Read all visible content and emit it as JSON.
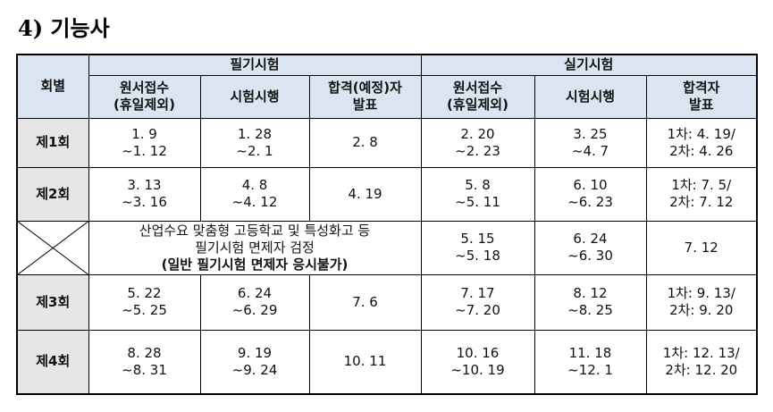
{
  "title": "4) 기능사",
  "table": {
    "header": {
      "round": "회별",
      "written": "필기시험",
      "practical": "실기시험"
    },
    "subheaders": [
      [
        "원서접수",
        "(휴일제외)"
      ],
      [
        "시험시행"
      ],
      [
        "합격(예정)자",
        "발표"
      ],
      [
        "원서접수",
        "(휴일제외)"
      ],
      [
        "시험시행"
      ],
      [
        "합격자",
        "발표"
      ]
    ],
    "rows": [
      {
        "label": "제1회",
        "cells": [
          [
            "1. 9",
            "~1. 12"
          ],
          [
            "1. 28",
            "~2. 1"
          ],
          [
            "2. 8"
          ],
          [
            "2. 20",
            "~2. 23"
          ],
          [
            "3. 25",
            "~4. 7"
          ],
          [
            "1차: 4. 19/",
            "2차: 4. 26"
          ]
        ]
      },
      {
        "label": "제2회",
        "cells": [
          [
            "3. 13",
            "~3. 16"
          ],
          [
            "4. 8",
            "~4. 12"
          ],
          [
            "4. 19"
          ],
          [
            "5. 8",
            "~5. 11"
          ],
          [
            "6. 10",
            "~6. 23"
          ],
          [
            "1차: 7. 5/",
            "2차: 7. 12"
          ]
        ]
      },
      {
        "note": [
          "산업수요 맞춤형 고등학교 및 특성화고 등",
          "필기시험 면제자 검정",
          "(일반 필기시험 면제자 응시불가)"
        ],
        "cells": [
          [
            "5. 15",
            "~5. 18"
          ],
          [
            "6. 24",
            "~6. 30"
          ],
          [
            "7. 12"
          ]
        ]
      },
      {
        "label": "제3회",
        "cells": [
          [
            "5. 22",
            "~5. 25"
          ],
          [
            "6. 24",
            "~6. 29"
          ],
          [
            "7. 6"
          ],
          [
            "7. 17",
            "~7. 20"
          ],
          [
            "8. 12",
            "~8. 25"
          ],
          [
            "1차: 9. 13/",
            "2차: 9. 20"
          ]
        ]
      },
      {
        "label": "제4회",
        "cells": [
          [
            "8. 28",
            "~8. 31"
          ],
          [
            "9. 19",
            "~9. 24"
          ],
          [
            "10. 11"
          ],
          [
            "10. 16",
            "~10. 19"
          ],
          [
            "11. 18",
            "~12. 1"
          ],
          [
            "1차: 12. 13/",
            "2차: 12. 20"
          ]
        ]
      }
    ]
  }
}
